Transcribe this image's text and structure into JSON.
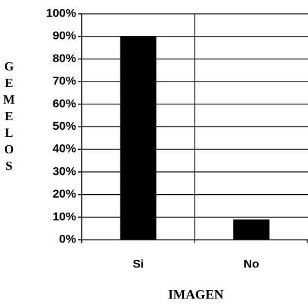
{
  "chart_data": {
    "type": "bar",
    "x_label": "IMAGEN",
    "y_label": "GEMELOS",
    "categories": [
      "Si",
      "No"
    ],
    "values": [
      90,
      9
    ],
    "color": "#000000",
    "ylim": [
      0,
      100
    ],
    "yticks": [
      {
        "value": 0,
        "label": "0%"
      },
      {
        "value": 10,
        "label": "10%"
      },
      {
        "value": 20,
        "label": "20%"
      },
      {
        "value": 30,
        "label": "30%"
      },
      {
        "value": 40,
        "label": "40%"
      },
      {
        "value": 50,
        "label": "50%"
      },
      {
        "value": 60,
        "label": "60%"
      },
      {
        "value": 70,
        "label": "70%"
      },
      {
        "value": 80,
        "label": "80%"
      },
      {
        "value": 90,
        "label": "90%"
      },
      {
        "value": 100,
        "label": "100%"
      }
    ],
    "grid": true
  }
}
